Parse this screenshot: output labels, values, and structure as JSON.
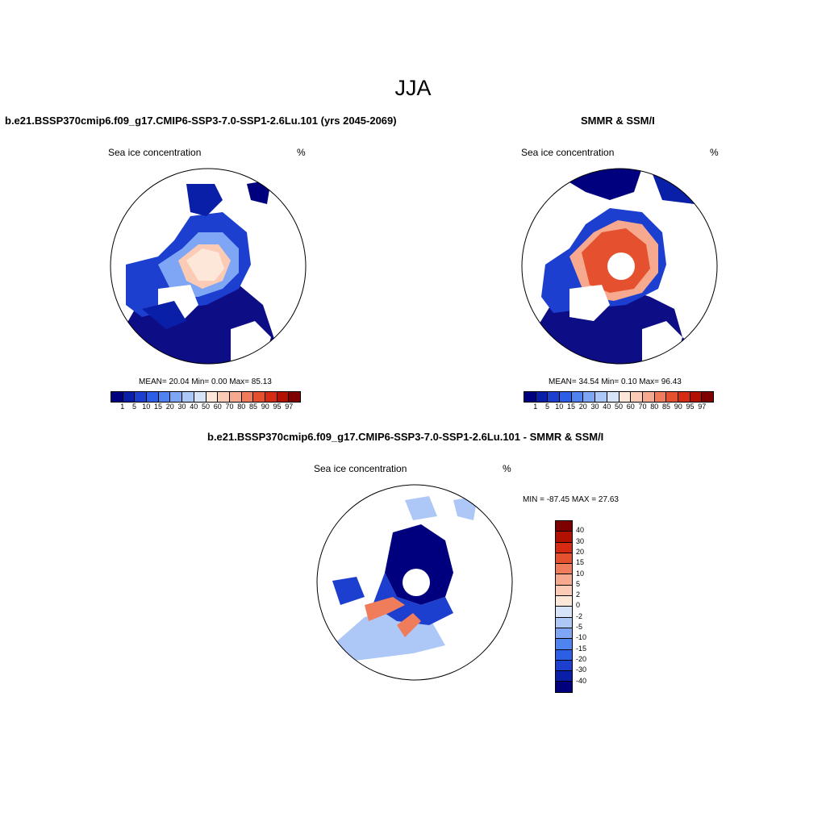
{
  "title": "JJA",
  "panels": [
    {
      "id": "model",
      "title": "b.e21.BSSP370cmip6.f09_g17.CMIP6-SSP3-7.0-SSP1-2.6Lu.101 (yrs 2045-2069)",
      "left_label": "Sea ice concentration",
      "right_label": "%",
      "stats": "MEAN=  20.04  Min=   0.00  Max=  85.13",
      "colorbar_ticks": [
        "1",
        "5",
        "10",
        "15",
        "20",
        "30",
        "40",
        "50",
        "60",
        "70",
        "80",
        "85",
        "90",
        "95",
        "97"
      ]
    },
    {
      "id": "obs",
      "title": "SMMR & SSM/I",
      "left_label": "Sea ice concentration",
      "right_label": "%",
      "stats": "MEAN=  34.54  Min=   0.10  Max=  96.43",
      "colorbar_ticks": [
        "1",
        "5",
        "10",
        "15",
        "20",
        "30",
        "40",
        "50",
        "60",
        "70",
        "80",
        "85",
        "90",
        "95",
        "97"
      ]
    },
    {
      "id": "diff",
      "title": "b.e21.BSSP370cmip6.f09_g17.CMIP6-SSP3-7.0-SSP1-2.6Lu.101 - SMMR & SSM/I",
      "left_label": "Sea ice concentration",
      "right_label": "%",
      "stats": "MIN = -87.45 MAX =  27.63",
      "colorbar_ticks": [
        "40",
        "30",
        "20",
        "15",
        "10",
        "5",
        "2",
        "0",
        "-2",
        "-5",
        "-10",
        "-15",
        "-20",
        "-30",
        "-40"
      ]
    }
  ],
  "colors": {
    "absolute_scale": [
      "#00007f",
      "#0a1fa8",
      "#1c3fd0",
      "#2d5fe6",
      "#4f84f0",
      "#7ea6f5",
      "#adc8f7",
      "#d6e3f8",
      "#fde7d9",
      "#fbcbb5",
      "#f6a98e",
      "#ef7d5c",
      "#e5502f",
      "#d62a12",
      "#b21000",
      "#7f0000"
    ],
    "diff_scale": [
      "#00007f",
      "#0a1fa8",
      "#1c3fd0",
      "#2d5fe6",
      "#4f84f0",
      "#7ea6f5",
      "#adc8f7",
      "#d6e3f8",
      "#fde7d9",
      "#fbcbb5",
      "#f6a98e",
      "#ef7d5c",
      "#e5502f",
      "#d62a12",
      "#b21000",
      "#7f0000"
    ]
  }
}
